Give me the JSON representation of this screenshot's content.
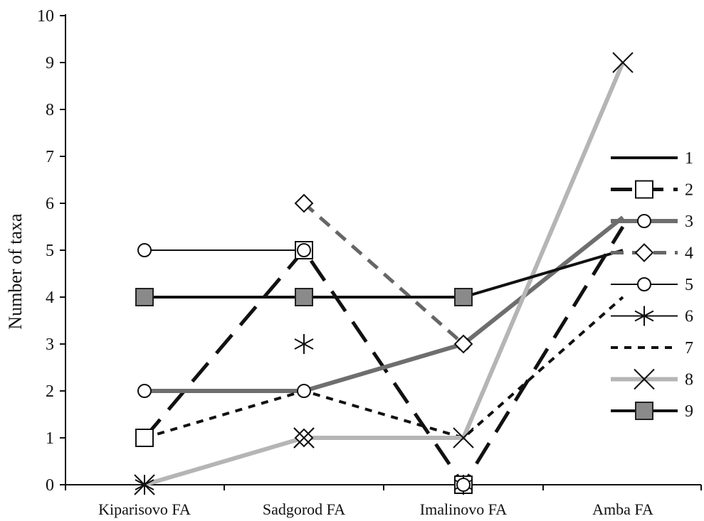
{
  "chart_data": {
    "type": "line",
    "title": "",
    "xlabel": "",
    "ylabel": "Number of taxa",
    "ylim": [
      0,
      10
    ],
    "yticks": [
      0,
      1,
      2,
      3,
      4,
      5,
      6,
      7,
      8,
      9,
      10
    ],
    "categories": [
      "Kiparisovo FA",
      "Sadgorod FA",
      "Imalinovo FA",
      "Amba FA"
    ],
    "grid": false,
    "legend_position": "right",
    "series": [
      {
        "name": "1",
        "values": [
          null,
          null,
          null,
          5
        ],
        "color": "#111111",
        "dash": "solid",
        "width": 4,
        "marker": "none"
      },
      {
        "name": "2",
        "values": [
          1,
          5,
          0,
          5.5
        ],
        "color": "#111111",
        "dash": "long-dash",
        "width": 5,
        "marker": "square-open"
      },
      {
        "name": "3",
        "values": [
          2,
          2,
          3,
          5.7
        ],
        "color": "#777777",
        "dash": "textured",
        "width": 6,
        "marker": "circle-open"
      },
      {
        "name": "4",
        "values": [
          null,
          6,
          3,
          null
        ],
        "color": "#666666",
        "dash": "dash",
        "width": 5,
        "marker": "diamond-open"
      },
      {
        "name": "5",
        "values": [
          5,
          5,
          null,
          null
        ],
        "color": "#111111",
        "dash": "solid",
        "width": 2,
        "marker": "circle-open"
      },
      {
        "name": "6",
        "values": [
          null,
          3,
          null,
          null
        ],
        "color": "#111111",
        "dash": "solid",
        "width": 2,
        "marker": "asterisk"
      },
      {
        "name": "7",
        "values": [
          1,
          2,
          1,
          4
        ],
        "color": "#111111",
        "dash": "short-dash",
        "width": 4,
        "marker": "none"
      },
      {
        "name": "8",
        "values": [
          0,
          1,
          1,
          9
        ],
        "color": "#aaaaaa",
        "dash": "dotted",
        "width": 6,
        "marker": "x"
      },
      {
        "name": "9",
        "values": [
          4,
          4,
          4,
          5
        ],
        "color": "#111111",
        "dash": "solid",
        "width": 4,
        "marker": "square-filled"
      }
    ],
    "extra_markers": [
      {
        "series": "4",
        "category": 1,
        "value": 1,
        "marker": "diamond-open"
      },
      {
        "series": "4",
        "category": 2,
        "value": 0,
        "marker": "diamond-open"
      },
      {
        "series": "8",
        "category": 1,
        "value": 1,
        "marker": "x"
      },
      {
        "series": "2",
        "category": 2,
        "value": 0,
        "marker": "square-open"
      },
      {
        "series": "6",
        "category": 0,
        "value": 0,
        "marker": "asterisk"
      },
      {
        "series": "6",
        "category": 2,
        "value": 0,
        "marker": "asterisk"
      },
      {
        "series": "3",
        "category": 2,
        "value": 0,
        "marker": "circle-open"
      }
    ]
  }
}
